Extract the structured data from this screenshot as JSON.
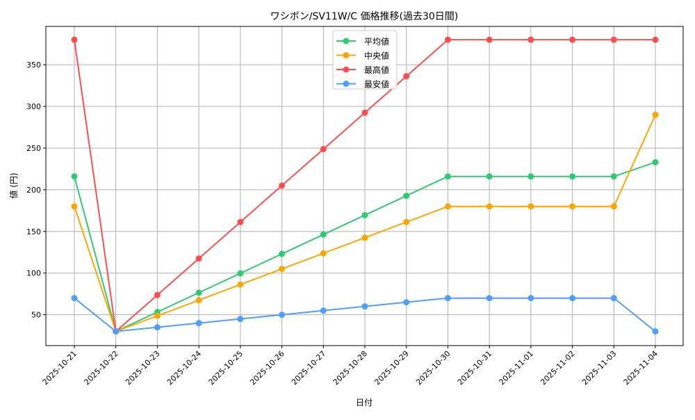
{
  "chart_data": {
    "type": "line",
    "title": "ワシボン/SV11W/C 価格推移(過去30日間)",
    "xlabel": "日付",
    "ylabel": "値 (円)",
    "categories": [
      "2025-10-21",
      "2025-10-22",
      "2025-10-23",
      "2025-10-24",
      "2025-10-25",
      "2025-10-26",
      "2025-10-27",
      "2025-10-28",
      "2025-10-29",
      "2025-10-30",
      "2025-10-31",
      "2025-11-01",
      "2025-11-02",
      "2025-11-03",
      "2025-11-04"
    ],
    "ylim": [
      13,
      396
    ],
    "yticks": [
      50,
      100,
      150,
      200,
      250,
      300,
      350
    ],
    "grid": true,
    "legend_position": "top-center",
    "series": [
      {
        "name": "平均値",
        "color": "#2ecc71",
        "values": [
          216,
          30,
          53.25,
          76.5,
          99.75,
          123,
          146.25,
          169.5,
          192.75,
          216,
          216,
          216,
          216,
          216,
          233
        ]
      },
      {
        "name": "中央値",
        "color": "#ffa500",
        "values": [
          180,
          30,
          48.75,
          67.5,
          86.25,
          105,
          123.75,
          142.5,
          161.25,
          180,
          180,
          180,
          180,
          180,
          290
        ]
      },
      {
        "name": "最高値",
        "color": "#ff4d4d",
        "values": [
          380,
          30,
          73.75,
          117.5,
          161.25,
          205,
          248.75,
          292.5,
          336.25,
          380,
          380,
          380,
          380,
          380,
          380
        ]
      },
      {
        "name": "最安値",
        "color": "#4d9eff",
        "values": [
          70,
          30,
          35,
          40,
          45,
          50,
          55,
          60,
          65,
          70,
          70,
          70,
          70,
          70,
          30
        ]
      }
    ]
  }
}
